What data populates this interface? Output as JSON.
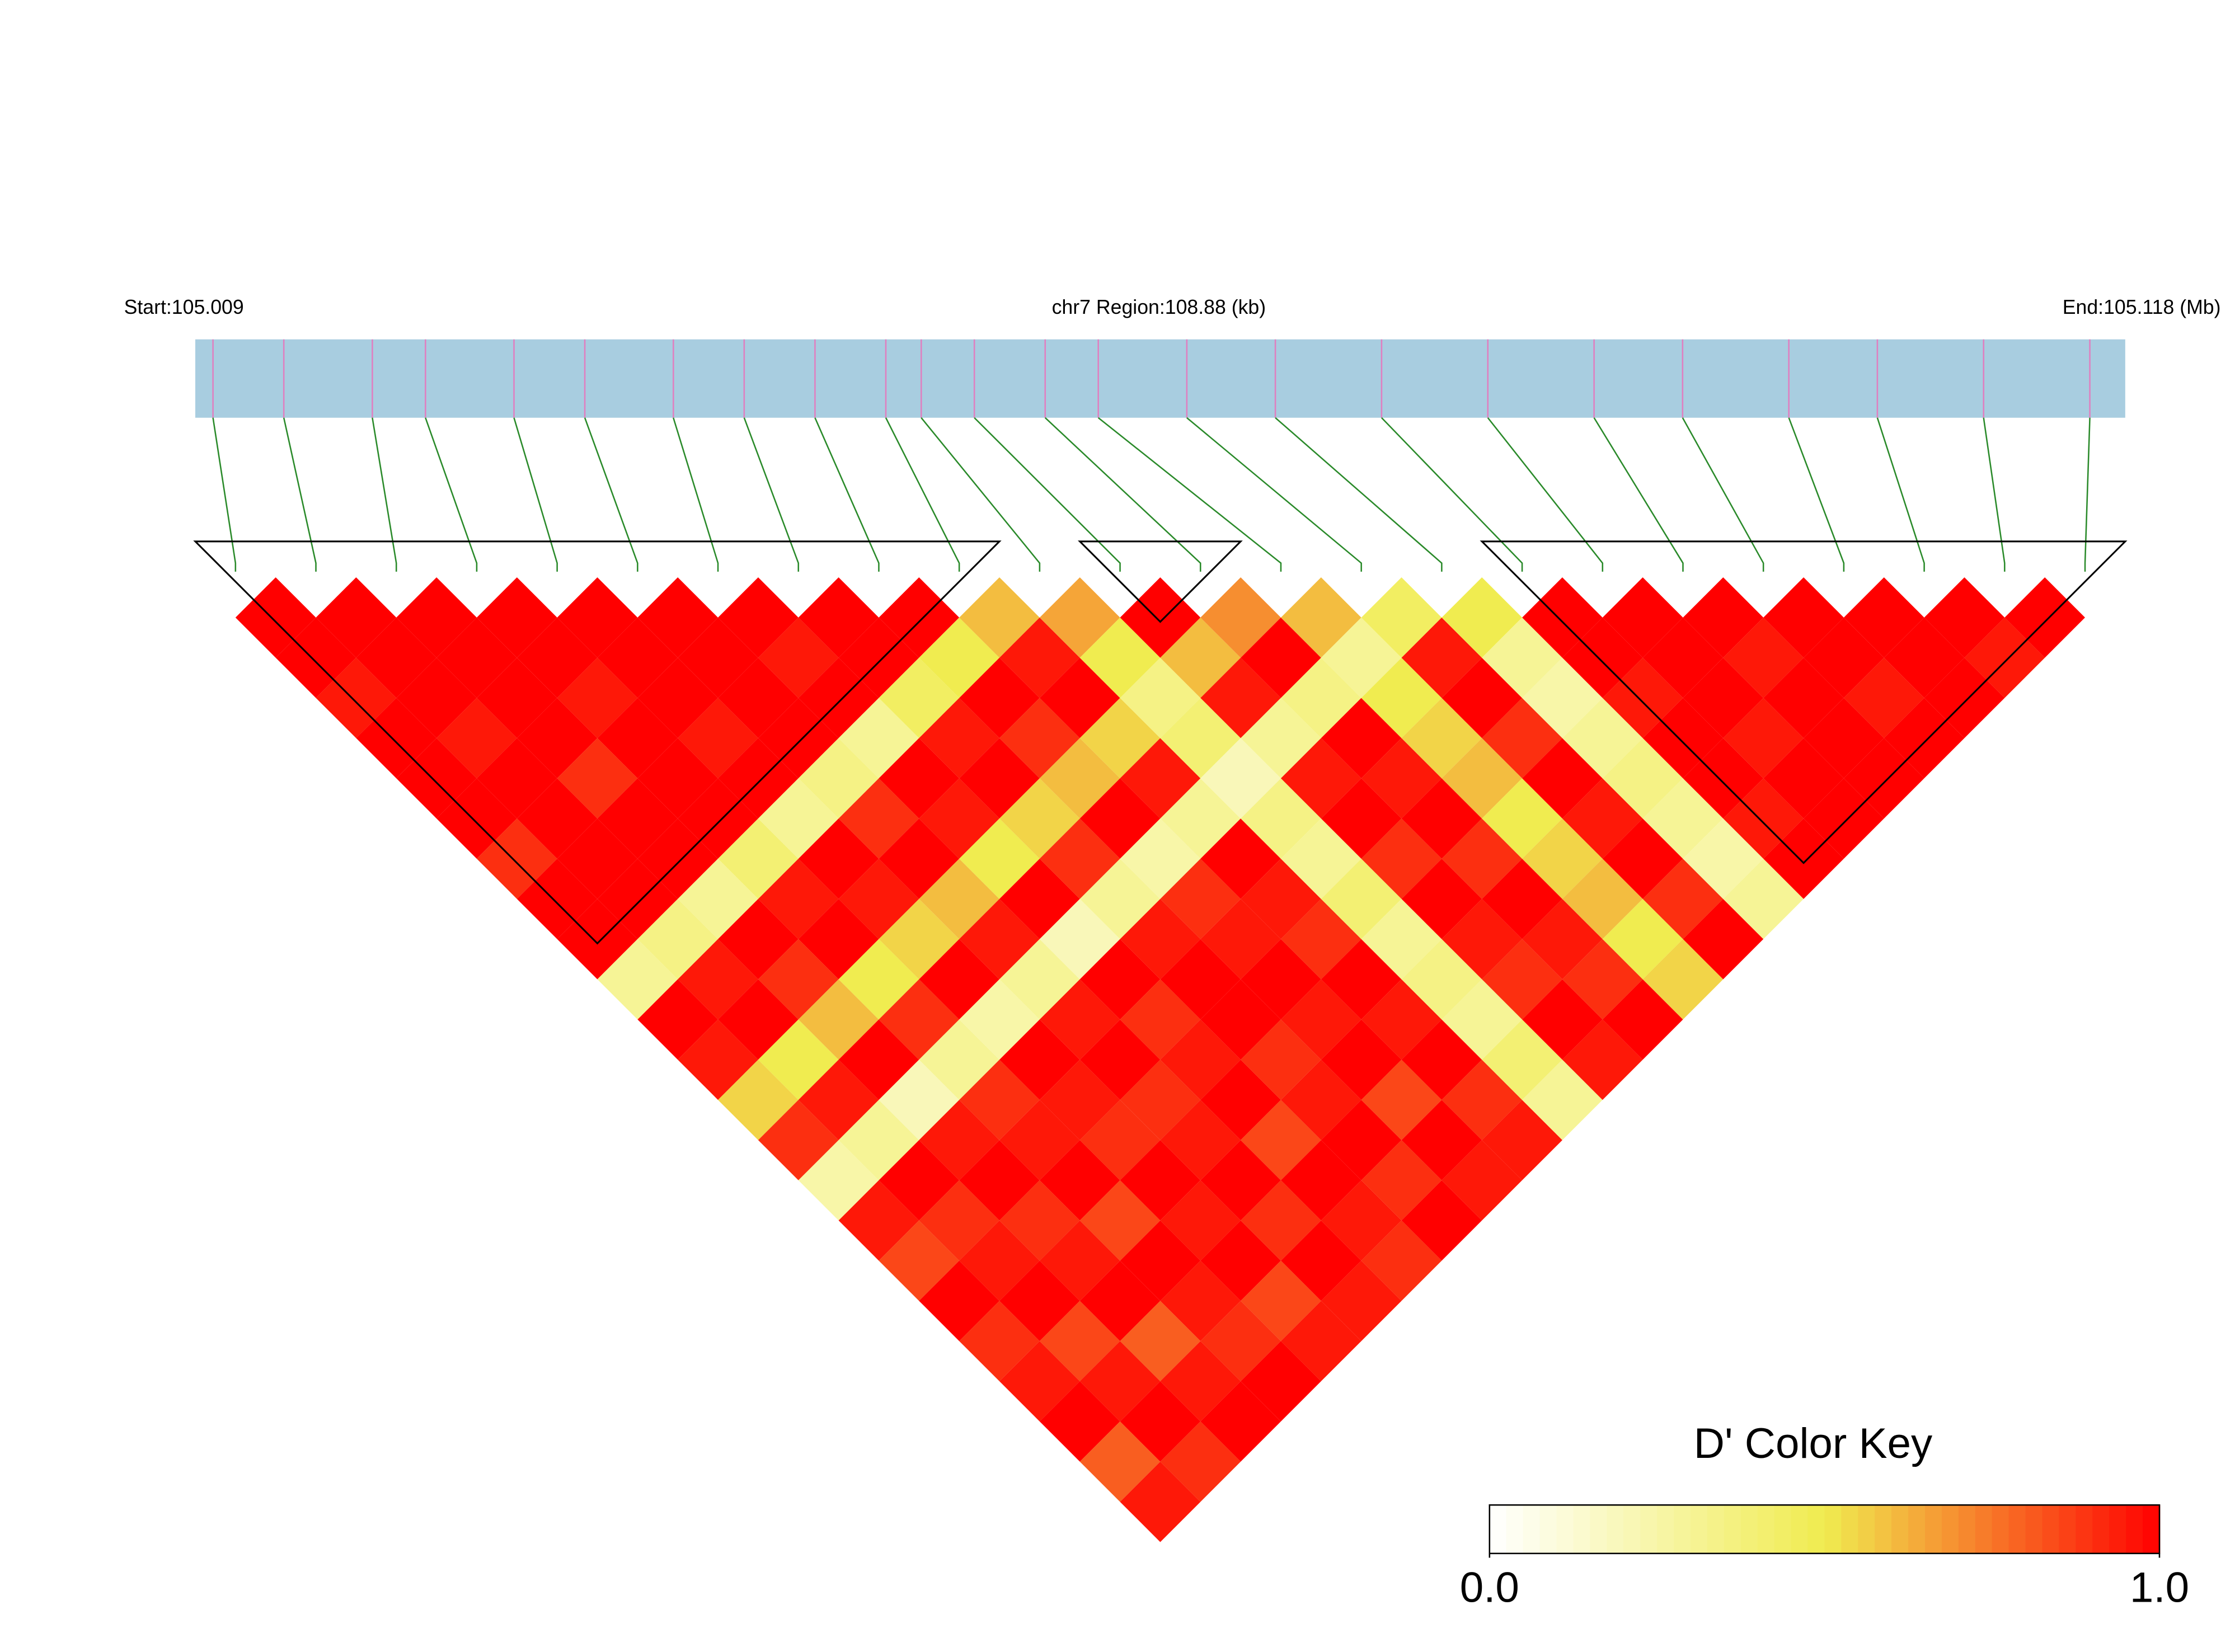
{
  "chart_data": {
    "type": "ld_heatmap",
    "start_label": "Start:105.009",
    "region_label": "chr7 Region:108.88 (kb)",
    "end_label": "End:105.118 (Mb)",
    "xlim": [
      105.009,
      105.118
    ],
    "positions": [
      105.01,
      105.014,
      105.019,
      105.022,
      105.027,
      105.031,
      105.036,
      105.04,
      105.044,
      105.048,
      105.05,
      105.053,
      105.057,
      105.06,
      105.065,
      105.07,
      105.076,
      105.082,
      105.088,
      105.093,
      105.099,
      105.104,
      105.11,
      105.116
    ],
    "ld": {
      "rows": [
        [
          1,
          1,
          0.95,
          1,
          1,
          1,
          0.9,
          1,
          1,
          0.3,
          1,
          0.95,
          0.55,
          0.9,
          0.25,
          0.95,
          0.85,
          1,
          0.9,
          0.95,
          1,
          0.8,
          0.95
        ],
        [
          1,
          1,
          1,
          0.95,
          1,
          1,
          1,
          1,
          0.35,
          0.95,
          1,
          0.5,
          0.95,
          0.3,
          1,
          0.9,
          0.95,
          1,
          0.85,
          0.95,
          1,
          0.9
        ],
        [
          1,
          1,
          1,
          1,
          0.9,
          1,
          1,
          0.3,
          1,
          0.9,
          0.6,
          1,
          0.2,
          0.95,
          1,
          0.9,
          0.95,
          1,
          0.8,
          0.95,
          1
        ],
        [
          1,
          1,
          0.95,
          1,
          1,
          1,
          0.4,
          0.95,
          1,
          0.5,
          0.9,
          0.3,
          0.9,
          0.95,
          1,
          0.85,
          1,
          0.95,
          0.9,
          1
        ],
        [
          1,
          1,
          1,
          0.95,
          1,
          0.3,
          1,
          0.95,
          0.55,
          1,
          0.25,
          1,
          0.95,
          0.9,
          1,
          0.95,
          1,
          0.85,
          0.95
        ],
        [
          1,
          1,
          1,
          1,
          0.35,
          0.9,
          1,
          0.6,
          0.95,
          0.3,
          0.95,
          1,
          0.9,
          0.95,
          1,
          0.9,
          1,
          0.95
        ],
        [
          1,
          0.95,
          1,
          0.3,
          1,
          0.95,
          0.5,
          1,
          0.2,
          1,
          0.9,
          0.95,
          1,
          0.85,
          1,
          0.95,
          0.9
        ],
        [
          1,
          1,
          0.45,
          0.95,
          1,
          0.55,
          0.9,
          0.3,
          0.95,
          1,
          1,
          0.9,
          0.95,
          1,
          0.9,
          1
        ],
        [
          1,
          0.5,
          1,
          0.9,
          0.6,
          1,
          0.25,
          0.9,
          0.95,
          1,
          0.95,
          1,
          0.85,
          1,
          0.95
        ],
        [
          0.6,
          0.95,
          1,
          0.55,
          0.95,
          0.3,
          1,
          0.95,
          0.9,
          1,
          0.95,
          1,
          0.9,
          0.95
        ],
        [
          0.65,
          0.5,
          0.35,
          0.4,
          0.2,
          0.35,
          0.3,
          0.4,
          0.3,
          0.35,
          0.3,
          0.4,
          0.3
        ],
        [
          1,
          0.6,
          0.95,
          0.3,
          0.95,
          1,
          0.9,
          1,
          0.95,
          0.9,
          1,
          0.95
        ],
        [
          0.7,
          1,
          0.35,
          1,
          0.95,
          1,
          0.9,
          1,
          0.95,
          0.9,
          1
        ],
        [
          0.6,
          0.3,
          0.5,
          0.55,
          0.6,
          0.5,
          0.55,
          0.6,
          0.5,
          0.55
        ],
        [
          0.45,
          0.95,
          1,
          0.9,
          1,
          0.95,
          1,
          0.9,
          1
        ],
        [
          0.5,
          0.3,
          0.25,
          0.3,
          0.35,
          0.3,
          0.25,
          0.3
        ],
        [
          1,
          1,
          0.95,
          1,
          1,
          0.95,
          1
        ],
        [
          1,
          1,
          1,
          0.95,
          1,
          1
        ],
        [
          1,
          0.95,
          1,
          1,
          1
        ],
        [
          1,
          1,
          0.95,
          1
        ],
        [
          1,
          1,
          1
        ],
        [
          1,
          0.95
        ],
        [
          1
        ]
      ]
    },
    "blocks": [
      [
        0,
        9
      ],
      [
        11,
        12
      ],
      [
        16,
        23
      ]
    ],
    "colors": [
      "#ffffff",
      "#f0ec50",
      "#ff0000"
    ],
    "color_key": {
      "title": "D' Color Key",
      "ticks": [
        {
          "value": 0,
          "label": "0.0"
        },
        {
          "value": 1,
          "label": "1.0"
        }
      ]
    }
  }
}
